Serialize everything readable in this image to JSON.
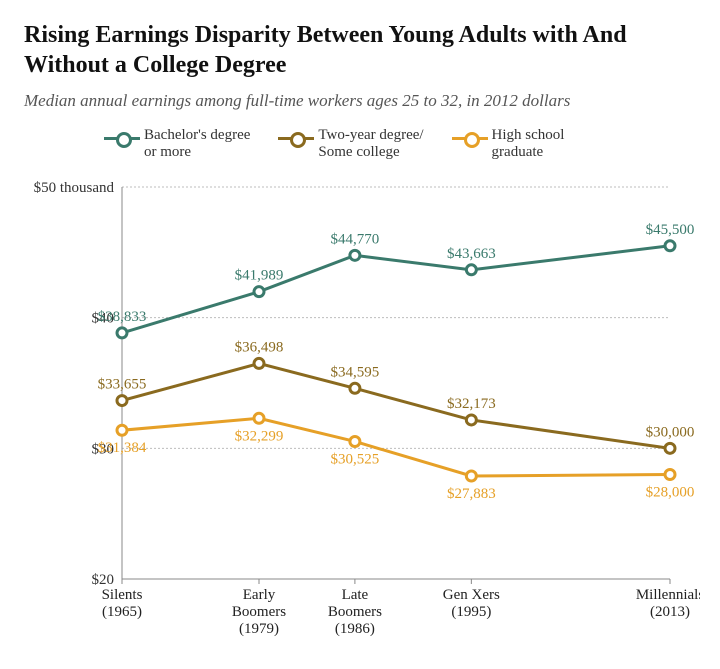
{
  "title": "Rising Earnings Disparity Between Young Adults with And Without a College Degree",
  "subtitle": "Median annual earnings among full-time workers ages 25 to 32, in 2012 dollars",
  "chart": {
    "type": "line",
    "background_color": "#ffffff",
    "grid_color": "#bdbdbd",
    "axis_color": "#888888",
    "ylim": [
      20,
      50
    ],
    "yticks": [
      20,
      30,
      40,
      50
    ],
    "ytick_labels": [
      "$20",
      "$30",
      "$40",
      "$50 thousand"
    ],
    "ytick_fontsize": 15,
    "xlabel_fontsize": 15,
    "value_fontsize": 15,
    "line_width": 3,
    "marker_radius": 5,
    "marker_stroke": 3,
    "marker_fill": "#ffffff",
    "categories": [
      {
        "line1": "Silents",
        "line2": "(1965)"
      },
      {
        "line1": "Early",
        "line2": "Boomers",
        "line3": "(1979)"
      },
      {
        "line1": "Late",
        "line2": "Boomers",
        "line3": "(1986)"
      },
      {
        "line1": "Gen Xers",
        "line2": "(1995)"
      },
      {
        "line1": "Millennials",
        "line2": "(2013)"
      }
    ],
    "x_positions": [
      0,
      1,
      1.7,
      2.55,
      4
    ],
    "series": [
      {
        "name": "Bachelor's degree or more",
        "legend_label": "Bachelor's degree\nor more",
        "color": "#3a7a6c",
        "values": [
          38833,
          41989,
          44770,
          43663,
          45500
        ],
        "labels": [
          "$38,833",
          "$41,989",
          "$44,770",
          "$43,663",
          "$45,500"
        ],
        "label_pos": [
          "above",
          "above",
          "above",
          "above",
          "above"
        ]
      },
      {
        "name": "Two-year degree/Some college",
        "legend_label": "Two-year degree/\nSome college",
        "color": "#8a6a1f",
        "values": [
          33655,
          36498,
          34595,
          32173,
          30000
        ],
        "labels": [
          "$33,655",
          "$36,498",
          "$34,595",
          "$32,173",
          "$30,000"
        ],
        "label_pos": [
          "above",
          "above",
          "above",
          "above",
          "above"
        ]
      },
      {
        "name": "High school graduate",
        "legend_label": "High school\ngraduate",
        "color": "#e6a027",
        "values": [
          31384,
          32299,
          30525,
          27883,
          28000
        ],
        "labels": [
          "$31,384",
          "$32,299",
          "$30,525",
          "$27,883",
          "$28,000"
        ],
        "label_pos": [
          "below",
          "below",
          "below",
          "below",
          "below"
        ]
      }
    ]
  }
}
